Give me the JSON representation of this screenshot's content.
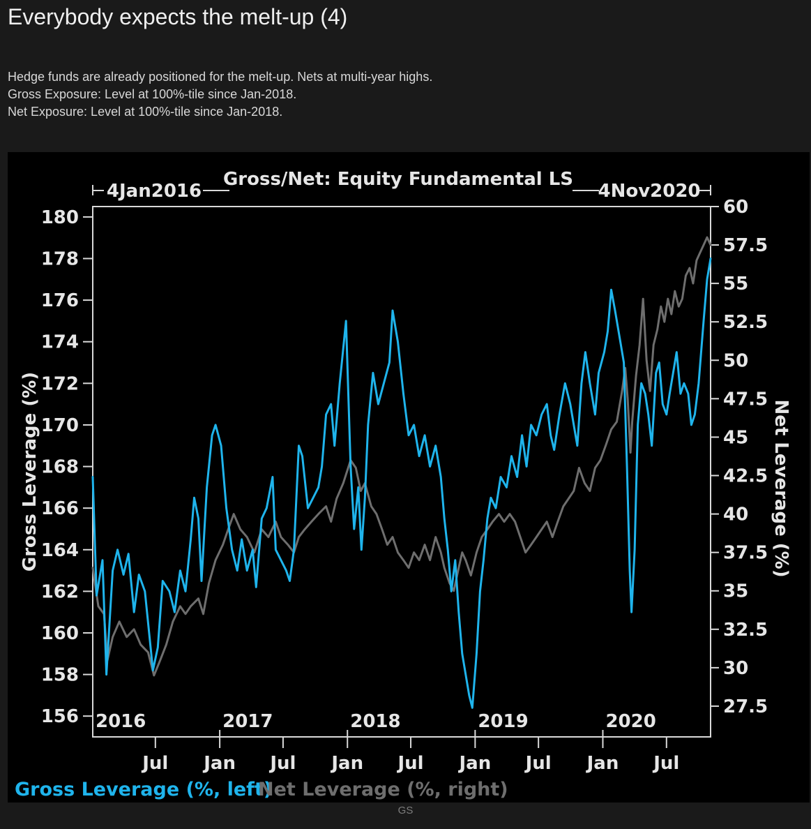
{
  "page": {
    "title": "Everybody expects the melt-up (4)",
    "subtitle_lines": [
      "Hedge funds are already positioned for the melt-up. Nets at multi-year highs.",
      "Gross Exposure: Level at 100%-tile since Jan-2018.",
      "Net Exposure: Level at 100%-tile since Jan-2018."
    ],
    "source": "GS"
  },
  "colors": {
    "gross": "#1fb4ec",
    "net": "#6e6e6e",
    "axis": "#d9d9d9",
    "background": "#000000"
  },
  "chart_data": {
    "type": "line",
    "title": "Gross/Net: Equity Fundamental LS",
    "start_label": "4Jan2016",
    "end_label": "4Nov2020",
    "x_range": [
      "2016-01-04",
      "2020-11-04"
    ],
    "y_left": {
      "label": "Gross Leverage (%)",
      "range": [
        155,
        180.5
      ],
      "ticks": [
        "156",
        "158",
        "160",
        "162",
        "164",
        "166",
        "168",
        "170",
        "172",
        "174",
        "176",
        "178",
        "180"
      ]
    },
    "y_right": {
      "label": "Net Leverage (%)",
      "range": [
        25.5,
        60
      ],
      "ticks": [
        "27.5",
        "30",
        "32.5",
        "35",
        "37.5",
        "40",
        "42.5",
        "45",
        "47.5",
        "50",
        "52.5",
        "55",
        "57.5",
        "60"
      ]
    },
    "x_ticks_year": [
      "2016",
      "2017",
      "2018",
      "2019",
      "2020"
    ],
    "x_ticks_month": [
      "Jul",
      "Jan",
      "Jul",
      "Jan",
      "Jul",
      "Jan",
      "Jul",
      "Jan",
      "Jul"
    ],
    "grid": false,
    "legend_position": "bottom-left",
    "series": [
      {
        "name": "Gross Leverage (%, left)",
        "axis": "left",
        "points": [
          [
            "2016-01-04",
            167.5
          ],
          [
            "2016-01-15",
            161.8
          ],
          [
            "2016-02-01",
            163.5
          ],
          [
            "2016-02-12",
            158.0
          ],
          [
            "2016-03-01",
            163.0
          ],
          [
            "2016-03-15",
            164.0
          ],
          [
            "2016-04-01",
            162.8
          ],
          [
            "2016-04-15",
            163.8
          ],
          [
            "2016-05-01",
            161.0
          ],
          [
            "2016-05-15",
            162.8
          ],
          [
            "2016-06-01",
            162.0
          ],
          [
            "2016-06-24",
            158.2
          ],
          [
            "2016-07-08",
            159.3
          ],
          [
            "2016-07-22",
            162.5
          ],
          [
            "2016-08-10",
            162.0
          ],
          [
            "2016-08-25",
            161.0
          ],
          [
            "2016-09-10",
            163.0
          ],
          [
            "2016-09-25",
            162.0
          ],
          [
            "2016-10-10",
            164.5
          ],
          [
            "2016-10-20",
            166.5
          ],
          [
            "2016-11-01",
            165.5
          ],
          [
            "2016-11-10",
            162.5
          ],
          [
            "2016-11-25",
            167.0
          ],
          [
            "2016-12-10",
            169.5
          ],
          [
            "2016-12-20",
            170.0
          ],
          [
            "2017-01-05",
            169.0
          ],
          [
            "2017-01-20",
            166.0
          ],
          [
            "2017-02-05",
            164.0
          ],
          [
            "2017-02-20",
            163.0
          ],
          [
            "2017-03-05",
            164.5
          ],
          [
            "2017-03-20",
            163.0
          ],
          [
            "2017-04-05",
            164.0
          ],
          [
            "2017-04-15",
            162.2
          ],
          [
            "2017-05-01",
            165.5
          ],
          [
            "2017-05-15",
            166.0
          ],
          [
            "2017-06-01",
            167.5
          ],
          [
            "2017-06-10",
            164.0
          ],
          [
            "2017-06-25",
            163.5
          ],
          [
            "2017-07-10",
            163.0
          ],
          [
            "2017-07-20",
            162.5
          ],
          [
            "2017-08-01",
            164.0
          ],
          [
            "2017-08-15",
            169.0
          ],
          [
            "2017-08-25",
            168.5
          ],
          [
            "2017-09-10",
            166.0
          ],
          [
            "2017-09-25",
            166.5
          ],
          [
            "2017-10-10",
            167.0
          ],
          [
            "2017-10-20",
            168.0
          ],
          [
            "2017-11-01",
            170.5
          ],
          [
            "2017-11-15",
            171.0
          ],
          [
            "2017-11-25",
            169.0
          ],
          [
            "2017-12-10",
            172.0
          ],
          [
            "2017-12-28",
            175.0
          ],
          [
            "2018-01-10",
            168.0
          ],
          [
            "2018-01-20",
            165.0
          ],
          [
            "2018-02-01",
            167.0
          ],
          [
            "2018-02-10",
            164.0
          ],
          [
            "2018-02-20",
            166.5
          ],
          [
            "2018-03-01",
            170.0
          ],
          [
            "2018-03-15",
            172.5
          ],
          [
            "2018-03-30",
            171.0
          ],
          [
            "2018-04-15",
            172.0
          ],
          [
            "2018-05-01",
            173.0
          ],
          [
            "2018-05-10",
            175.5
          ],
          [
            "2018-05-25",
            174.0
          ],
          [
            "2018-06-10",
            171.5
          ],
          [
            "2018-06-25",
            169.5
          ],
          [
            "2018-07-10",
            170.0
          ],
          [
            "2018-07-25",
            168.5
          ],
          [
            "2018-08-10",
            169.5
          ],
          [
            "2018-08-25",
            168.0
          ],
          [
            "2018-09-10",
            169.0
          ],
          [
            "2018-09-25",
            167.5
          ],
          [
            "2018-10-05",
            165.5
          ],
          [
            "2018-10-15",
            164.0
          ],
          [
            "2018-10-25",
            162.0
          ],
          [
            "2018-11-05",
            163.5
          ],
          [
            "2018-11-15",
            161.0
          ],
          [
            "2018-11-25",
            159.0
          ],
          [
            "2018-12-05",
            158.0
          ],
          [
            "2018-12-15",
            157.0
          ],
          [
            "2018-12-24",
            156.4
          ],
          [
            "2019-01-05",
            159.0
          ],
          [
            "2019-01-15",
            162.0
          ],
          [
            "2019-01-25",
            163.5
          ],
          [
            "2019-02-05",
            165.5
          ],
          [
            "2019-02-15",
            166.5
          ],
          [
            "2019-03-01",
            166.0
          ],
          [
            "2019-03-15",
            167.5
          ],
          [
            "2019-04-01",
            167.0
          ],
          [
            "2019-04-15",
            168.5
          ],
          [
            "2019-05-01",
            167.5
          ],
          [
            "2019-05-15",
            169.5
          ],
          [
            "2019-05-28",
            168.0
          ],
          [
            "2019-06-10",
            170.0
          ],
          [
            "2019-06-25",
            169.5
          ],
          [
            "2019-07-10",
            170.5
          ],
          [
            "2019-07-25",
            171.0
          ],
          [
            "2019-08-05",
            169.5
          ],
          [
            "2019-08-15",
            168.8
          ],
          [
            "2019-08-30",
            170.5
          ],
          [
            "2019-09-15",
            172.0
          ],
          [
            "2019-09-30",
            171.0
          ],
          [
            "2019-10-10",
            170.0
          ],
          [
            "2019-10-20",
            169.0
          ],
          [
            "2019-11-01",
            172.0
          ],
          [
            "2019-11-12",
            173.5
          ],
          [
            "2019-11-25",
            172.0
          ],
          [
            "2019-12-10",
            170.5
          ],
          [
            "2019-12-20",
            172.5
          ],
          [
            "2020-01-05",
            173.5
          ],
          [
            "2020-01-15",
            174.5
          ],
          [
            "2020-01-25",
            176.5
          ],
          [
            "2020-02-05",
            175.5
          ],
          [
            "2020-02-20",
            174.0
          ],
          [
            "2020-03-01",
            173.0
          ],
          [
            "2020-03-10",
            168.0
          ],
          [
            "2020-03-18",
            163.0
          ],
          [
            "2020-03-23",
            161.0
          ],
          [
            "2020-04-01",
            164.0
          ],
          [
            "2020-04-10",
            170.0
          ],
          [
            "2020-04-20",
            172.0
          ],
          [
            "2020-05-01",
            171.5
          ],
          [
            "2020-05-10",
            170.5
          ],
          [
            "2020-05-20",
            169.0
          ],
          [
            "2020-06-01",
            172.5
          ],
          [
            "2020-06-10",
            173.0
          ],
          [
            "2020-06-20",
            171.0
          ],
          [
            "2020-07-01",
            170.5
          ],
          [
            "2020-07-10",
            171.5
          ],
          [
            "2020-07-20",
            172.5
          ],
          [
            "2020-07-30",
            173.5
          ],
          [
            "2020-08-10",
            171.5
          ],
          [
            "2020-08-20",
            172.0
          ],
          [
            "2020-09-01",
            171.5
          ],
          [
            "2020-09-10",
            170.0
          ],
          [
            "2020-09-20",
            170.5
          ],
          [
            "2020-10-01",
            172.0
          ],
          [
            "2020-10-15",
            175.0
          ],
          [
            "2020-10-25",
            177.0
          ],
          [
            "2020-11-04",
            178.0
          ]
        ]
      },
      {
        "name": "Net Leverage (%, right)",
        "axis": "right",
        "points": [
          [
            "2016-01-04",
            36.5
          ],
          [
            "2016-01-20",
            34.0
          ],
          [
            "2016-02-05",
            33.5
          ],
          [
            "2016-02-15",
            30.5
          ],
          [
            "2016-03-01",
            32.0
          ],
          [
            "2016-03-20",
            33.0
          ],
          [
            "2016-04-10",
            32.0
          ],
          [
            "2016-05-01",
            32.5
          ],
          [
            "2016-05-20",
            31.5
          ],
          [
            "2016-06-10",
            31.0
          ],
          [
            "2016-06-27",
            29.5
          ],
          [
            "2016-07-15",
            30.5
          ],
          [
            "2016-08-01",
            31.5
          ],
          [
            "2016-08-20",
            33.0
          ],
          [
            "2016-09-10",
            34.0
          ],
          [
            "2016-09-25",
            33.5
          ],
          [
            "2016-10-10",
            34.0
          ],
          [
            "2016-11-01",
            34.5
          ],
          [
            "2016-11-15",
            33.5
          ],
          [
            "2016-12-01",
            35.5
          ],
          [
            "2016-12-20",
            37.0
          ],
          [
            "2017-01-10",
            38.0
          ],
          [
            "2017-01-25",
            39.0
          ],
          [
            "2017-02-10",
            40.0
          ],
          [
            "2017-03-01",
            39.0
          ],
          [
            "2017-03-20",
            38.5
          ],
          [
            "2017-04-10",
            37.5
          ],
          [
            "2017-05-01",
            39.0
          ],
          [
            "2017-05-20",
            38.5
          ],
          [
            "2017-06-10",
            39.5
          ],
          [
            "2017-06-25",
            38.5
          ],
          [
            "2017-07-15",
            38.0
          ],
          [
            "2017-08-01",
            37.5
          ],
          [
            "2017-08-15",
            38.5
          ],
          [
            "2017-09-01",
            39.0
          ],
          [
            "2017-09-20",
            39.5
          ],
          [
            "2017-10-10",
            40.0
          ],
          [
            "2017-11-01",
            40.5
          ],
          [
            "2017-11-15",
            39.5
          ],
          [
            "2017-12-01",
            41.0
          ],
          [
            "2017-12-20",
            42.0
          ],
          [
            "2018-01-10",
            43.5
          ],
          [
            "2018-01-25",
            43.0
          ],
          [
            "2018-02-08",
            41.5
          ],
          [
            "2018-02-20",
            42.0
          ],
          [
            "2018-03-10",
            40.5
          ],
          [
            "2018-03-25",
            40.0
          ],
          [
            "2018-04-10",
            39.0
          ],
          [
            "2018-04-25",
            38.0
          ],
          [
            "2018-05-10",
            38.5
          ],
          [
            "2018-05-25",
            37.5
          ],
          [
            "2018-06-10",
            37.0
          ],
          [
            "2018-06-25",
            36.5
          ],
          [
            "2018-07-10",
            37.5
          ],
          [
            "2018-07-25",
            37.0
          ],
          [
            "2018-08-10",
            38.0
          ],
          [
            "2018-08-25",
            37.0
          ],
          [
            "2018-09-10",
            38.5
          ],
          [
            "2018-09-25",
            37.5
          ],
          [
            "2018-10-05",
            36.5
          ],
          [
            "2018-10-20",
            35.5
          ],
          [
            "2018-11-01",
            35.0
          ],
          [
            "2018-11-15",
            36.5
          ],
          [
            "2018-11-25",
            37.5
          ],
          [
            "2018-12-05",
            37.0
          ],
          [
            "2018-12-20",
            36.0
          ],
          [
            "2019-01-05",
            37.5
          ],
          [
            "2019-01-20",
            38.5
          ],
          [
            "2019-02-05",
            39.0
          ],
          [
            "2019-02-20",
            39.5
          ],
          [
            "2019-03-10",
            40.0
          ],
          [
            "2019-03-25",
            39.5
          ],
          [
            "2019-04-10",
            40.0
          ],
          [
            "2019-04-25",
            39.5
          ],
          [
            "2019-05-10",
            38.5
          ],
          [
            "2019-05-25",
            37.5
          ],
          [
            "2019-06-10",
            38.0
          ],
          [
            "2019-06-25",
            38.5
          ],
          [
            "2019-07-10",
            39.0
          ],
          [
            "2019-07-25",
            39.5
          ],
          [
            "2019-08-10",
            38.5
          ],
          [
            "2019-08-25",
            39.5
          ],
          [
            "2019-09-10",
            40.5
          ],
          [
            "2019-09-25",
            41.0
          ],
          [
            "2019-10-10",
            41.5
          ],
          [
            "2019-10-25",
            43.0
          ],
          [
            "2019-11-10",
            42.0
          ],
          [
            "2019-11-25",
            41.5
          ],
          [
            "2019-12-10",
            43.0
          ],
          [
            "2019-12-25",
            43.5
          ],
          [
            "2020-01-10",
            44.5
          ],
          [
            "2020-01-25",
            45.5
          ],
          [
            "2020-02-10",
            46.0
          ],
          [
            "2020-02-25",
            48.0
          ],
          [
            "2020-03-05",
            49.5
          ],
          [
            "2020-03-12",
            47.5
          ],
          [
            "2020-03-20",
            44.0
          ],
          [
            "2020-03-25",
            46.0
          ],
          [
            "2020-04-05",
            49.0
          ],
          [
            "2020-04-15",
            51.0
          ],
          [
            "2020-04-25",
            54.0
          ],
          [
            "2020-05-05",
            50.0
          ],
          [
            "2020-05-15",
            48.0
          ],
          [
            "2020-05-25",
            51.0
          ],
          [
            "2020-06-05",
            52.0
          ],
          [
            "2020-06-15",
            53.5
          ],
          [
            "2020-06-25",
            52.5
          ],
          [
            "2020-07-05",
            54.0
          ],
          [
            "2020-07-15",
            53.0
          ],
          [
            "2020-07-25",
            54.5
          ],
          [
            "2020-08-05",
            53.5
          ],
          [
            "2020-08-15",
            54.0
          ],
          [
            "2020-08-25",
            55.5
          ],
          [
            "2020-09-05",
            56.0
          ],
          [
            "2020-09-15",
            55.0
          ],
          [
            "2020-09-25",
            56.5
          ],
          [
            "2020-10-05",
            57.0
          ],
          [
            "2020-10-15",
            57.5
          ],
          [
            "2020-10-25",
            58.0
          ],
          [
            "2020-11-04",
            57.5
          ]
        ]
      }
    ]
  }
}
